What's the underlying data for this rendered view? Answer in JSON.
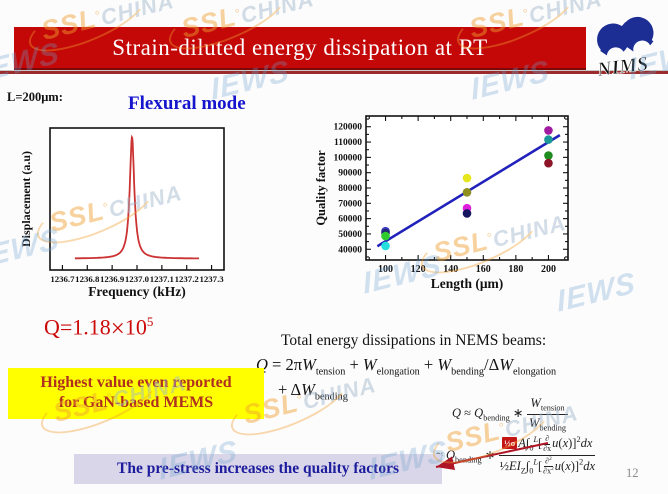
{
  "slide": {
    "title": "Strain-diluted energy dissipation at RT",
    "page_number": "12",
    "length_label": "L=200μm:",
    "mode_label": "Flexural mode",
    "q_prefix": "Q=1.18",
    "q_times": "×",
    "q_base": "10",
    "q_exponent": "5",
    "total_label": "Total energy dissipations in NEMS beams:",
    "highlight_note": {
      "line1": "Highest value even reported",
      "line2": "for GaN-based MEMS"
    },
    "conclusion_note": "The pre-stress increases the quality factors"
  },
  "logo": {
    "name": "NIMS"
  },
  "watermark": {
    "ssl": "SSL",
    "degree": "°",
    "china": "CHINA",
    "iews": "IEWS"
  },
  "equations": {
    "main_line1": "<i>Q</i> = 2π<i>W</i><sub>tension</sub> + <i>W</i><sub>elongation</sub> + <i>W</i><sub>bending</sub>/Δ<i>W</i><sub>elongation</sub>",
    "main_line2": "+ Δ<i>W</i><sub>bending</sub>",
    "approx1_lhs": "<i>Q</i> ≈ <i>Q</i><sub>bending</sub> ∗ ",
    "approx1_num": "<i>W</i><sub>tension</sub>",
    "approx1_den": "<i>W</i><sub>bending</sub>",
    "approx2_lhs": "≈ <i>Q</i><sub>bending</sub> ∗ ",
    "approx2_box": "½σ",
    "approx2_num_rest": "<i>A</i>∫<sub>0</sub><sup><i>L</i></sup>[<span class='pfrac'><span>∂</span><span>∂x</span></span><i>u</i>(<i>x</i>)]<sup>2</sup><i>dx</i>",
    "approx2_den": "½<i>EI</i><sub>Z</sub>∫<sub>0</sub><sup><i>L</i></sup>[<span class='pfrac'><span>∂<sup>2</sup></span><span>∂x<sup>2</sup></span></span><i>u</i>(<i>x</i>)]<sup>2</sup><i>dx</i>"
  },
  "colors": {
    "title_bar": "#c40808",
    "accent_red": "#cc0a0a",
    "note_bg": "#ffff00",
    "note_text": "#b03020",
    "conclusion_bg": "#d9d6e9",
    "conclusion_text": "#1c1c9c"
  },
  "chart_data": [
    {
      "type": "line",
      "title": "",
      "xlabel": "Frequency (kHz)",
      "ylabel": "Displacement (a.u)",
      "xlim": [
        1236.65,
        1237.35
      ],
      "xticks": [
        1236.7,
        1236.8,
        1236.9,
        1237.0,
        1237.1,
        1237.2,
        1237.3
      ],
      "grid": false,
      "color": "#cc3333",
      "curve": {
        "shape": "lorentzian",
        "center": 1236.98,
        "fwhm": 0.022,
        "baseline": 0.05,
        "peak": 1.0,
        "x_start": 1236.75,
        "x_end": 1237.25
      }
    },
    {
      "type": "scatter",
      "title": "",
      "xlabel": "Length (μm)",
      "ylabel": "Quality factor",
      "xlim": [
        88,
        212
      ],
      "ylim": [
        33000,
        127000
      ],
      "xticks": [
        100,
        120,
        140,
        160,
        180,
        200
      ],
      "yticks": [
        40000,
        50000,
        60000,
        70000,
        80000,
        90000,
        100000,
        110000,
        120000
      ],
      "xticks_minor_step": 10,
      "yticks_minor_step": 5000,
      "grid": false,
      "points": [
        {
          "x": 100,
          "y": 51800,
          "color": "#3a3ac0"
        },
        {
          "x": 100,
          "y": 50600,
          "color": "#262678"
        },
        {
          "x": 100,
          "y": 48600,
          "color": "#2ecc2e"
        },
        {
          "x": 100,
          "y": 42200,
          "color": "#25dede"
        },
        {
          "x": 150,
          "y": 86500,
          "color": "#e6e61e"
        },
        {
          "x": 150,
          "y": 77200,
          "color": "#8f8f1f"
        },
        {
          "x": 150,
          "y": 66800,
          "color": "#dd1edd"
        },
        {
          "x": 150,
          "y": 63400,
          "color": "#16165e"
        },
        {
          "x": 200,
          "y": 117600,
          "color": "#a01ba0"
        },
        {
          "x": 200,
          "y": 111600,
          "color": "#1b9898"
        },
        {
          "x": 200,
          "y": 101200,
          "color": "#1e8c1e"
        },
        {
          "x": 200,
          "y": 96200,
          "color": "#8c1426"
        }
      ],
      "fit_line": {
        "x1": 95,
        "y1": 42000,
        "x2": 207,
        "y2": 114500,
        "color": "#2121bb"
      }
    }
  ]
}
